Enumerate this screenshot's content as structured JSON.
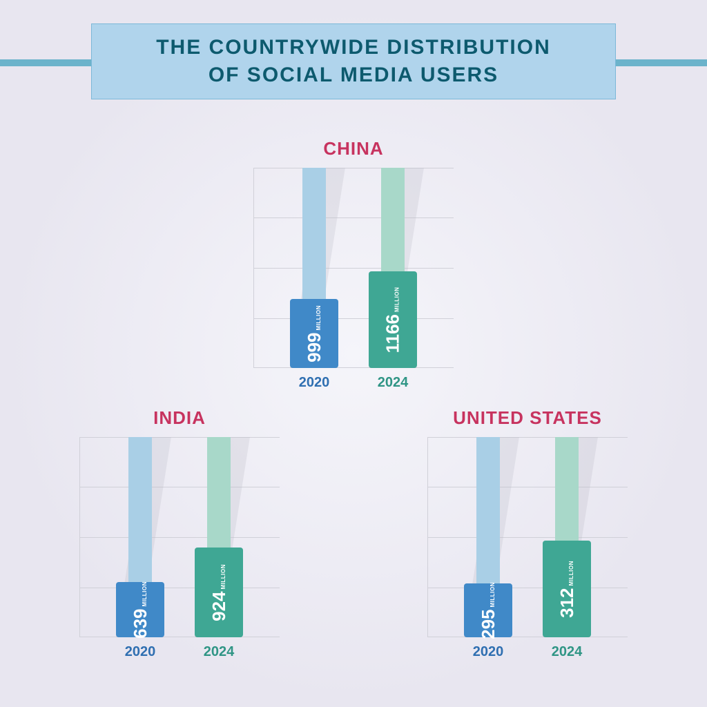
{
  "title_line1": "THE COUNTRYWIDE DISTRIBUTION",
  "title_line2": "OF SOCIAL MEDIA USERS",
  "title_color": "#0d5a6e",
  "banner_bg": "#b0d4ec",
  "banner_border": "#7bb8d8",
  "banner_rule_color": "#6cb3cb",
  "country_title_color": "#c7335f",
  "background": "#e8e6f0",
  "grid_color": "#d0d0d8",
  "colors": {
    "blue_back": "#a9cfe6",
    "blue_front": "#4089c8",
    "teal_back": "#a8d8c9",
    "teal_front": "#3fa794",
    "label_blue": "#2f6fb1",
    "label_teal": "#2f9585",
    "shadow": "#b9b9c2"
  },
  "unit": "MILLION",
  "max_value": 1200,
  "charts": {
    "china": {
      "name": "CHINA",
      "bars": [
        {
          "year": "2020",
          "value": 999,
          "back_h": 290,
          "front_h": 100
        },
        {
          "year": "2024",
          "value": 1166,
          "back_h": 290,
          "front_h": 140
        }
      ]
    },
    "india": {
      "name": "INDIA",
      "bars": [
        {
          "year": "2020",
          "value": 639,
          "back_h": 290,
          "front_h": 80
        },
        {
          "year": "2024",
          "value": 924,
          "back_h": 290,
          "front_h": 130
        }
      ]
    },
    "us": {
      "name": "UNITED STATES",
      "bars": [
        {
          "year": "2020",
          "value": 295,
          "back_h": 290,
          "front_h": 78
        },
        {
          "year": "2024",
          "value": 312,
          "back_h": 290,
          "front_h": 140
        }
      ]
    }
  }
}
